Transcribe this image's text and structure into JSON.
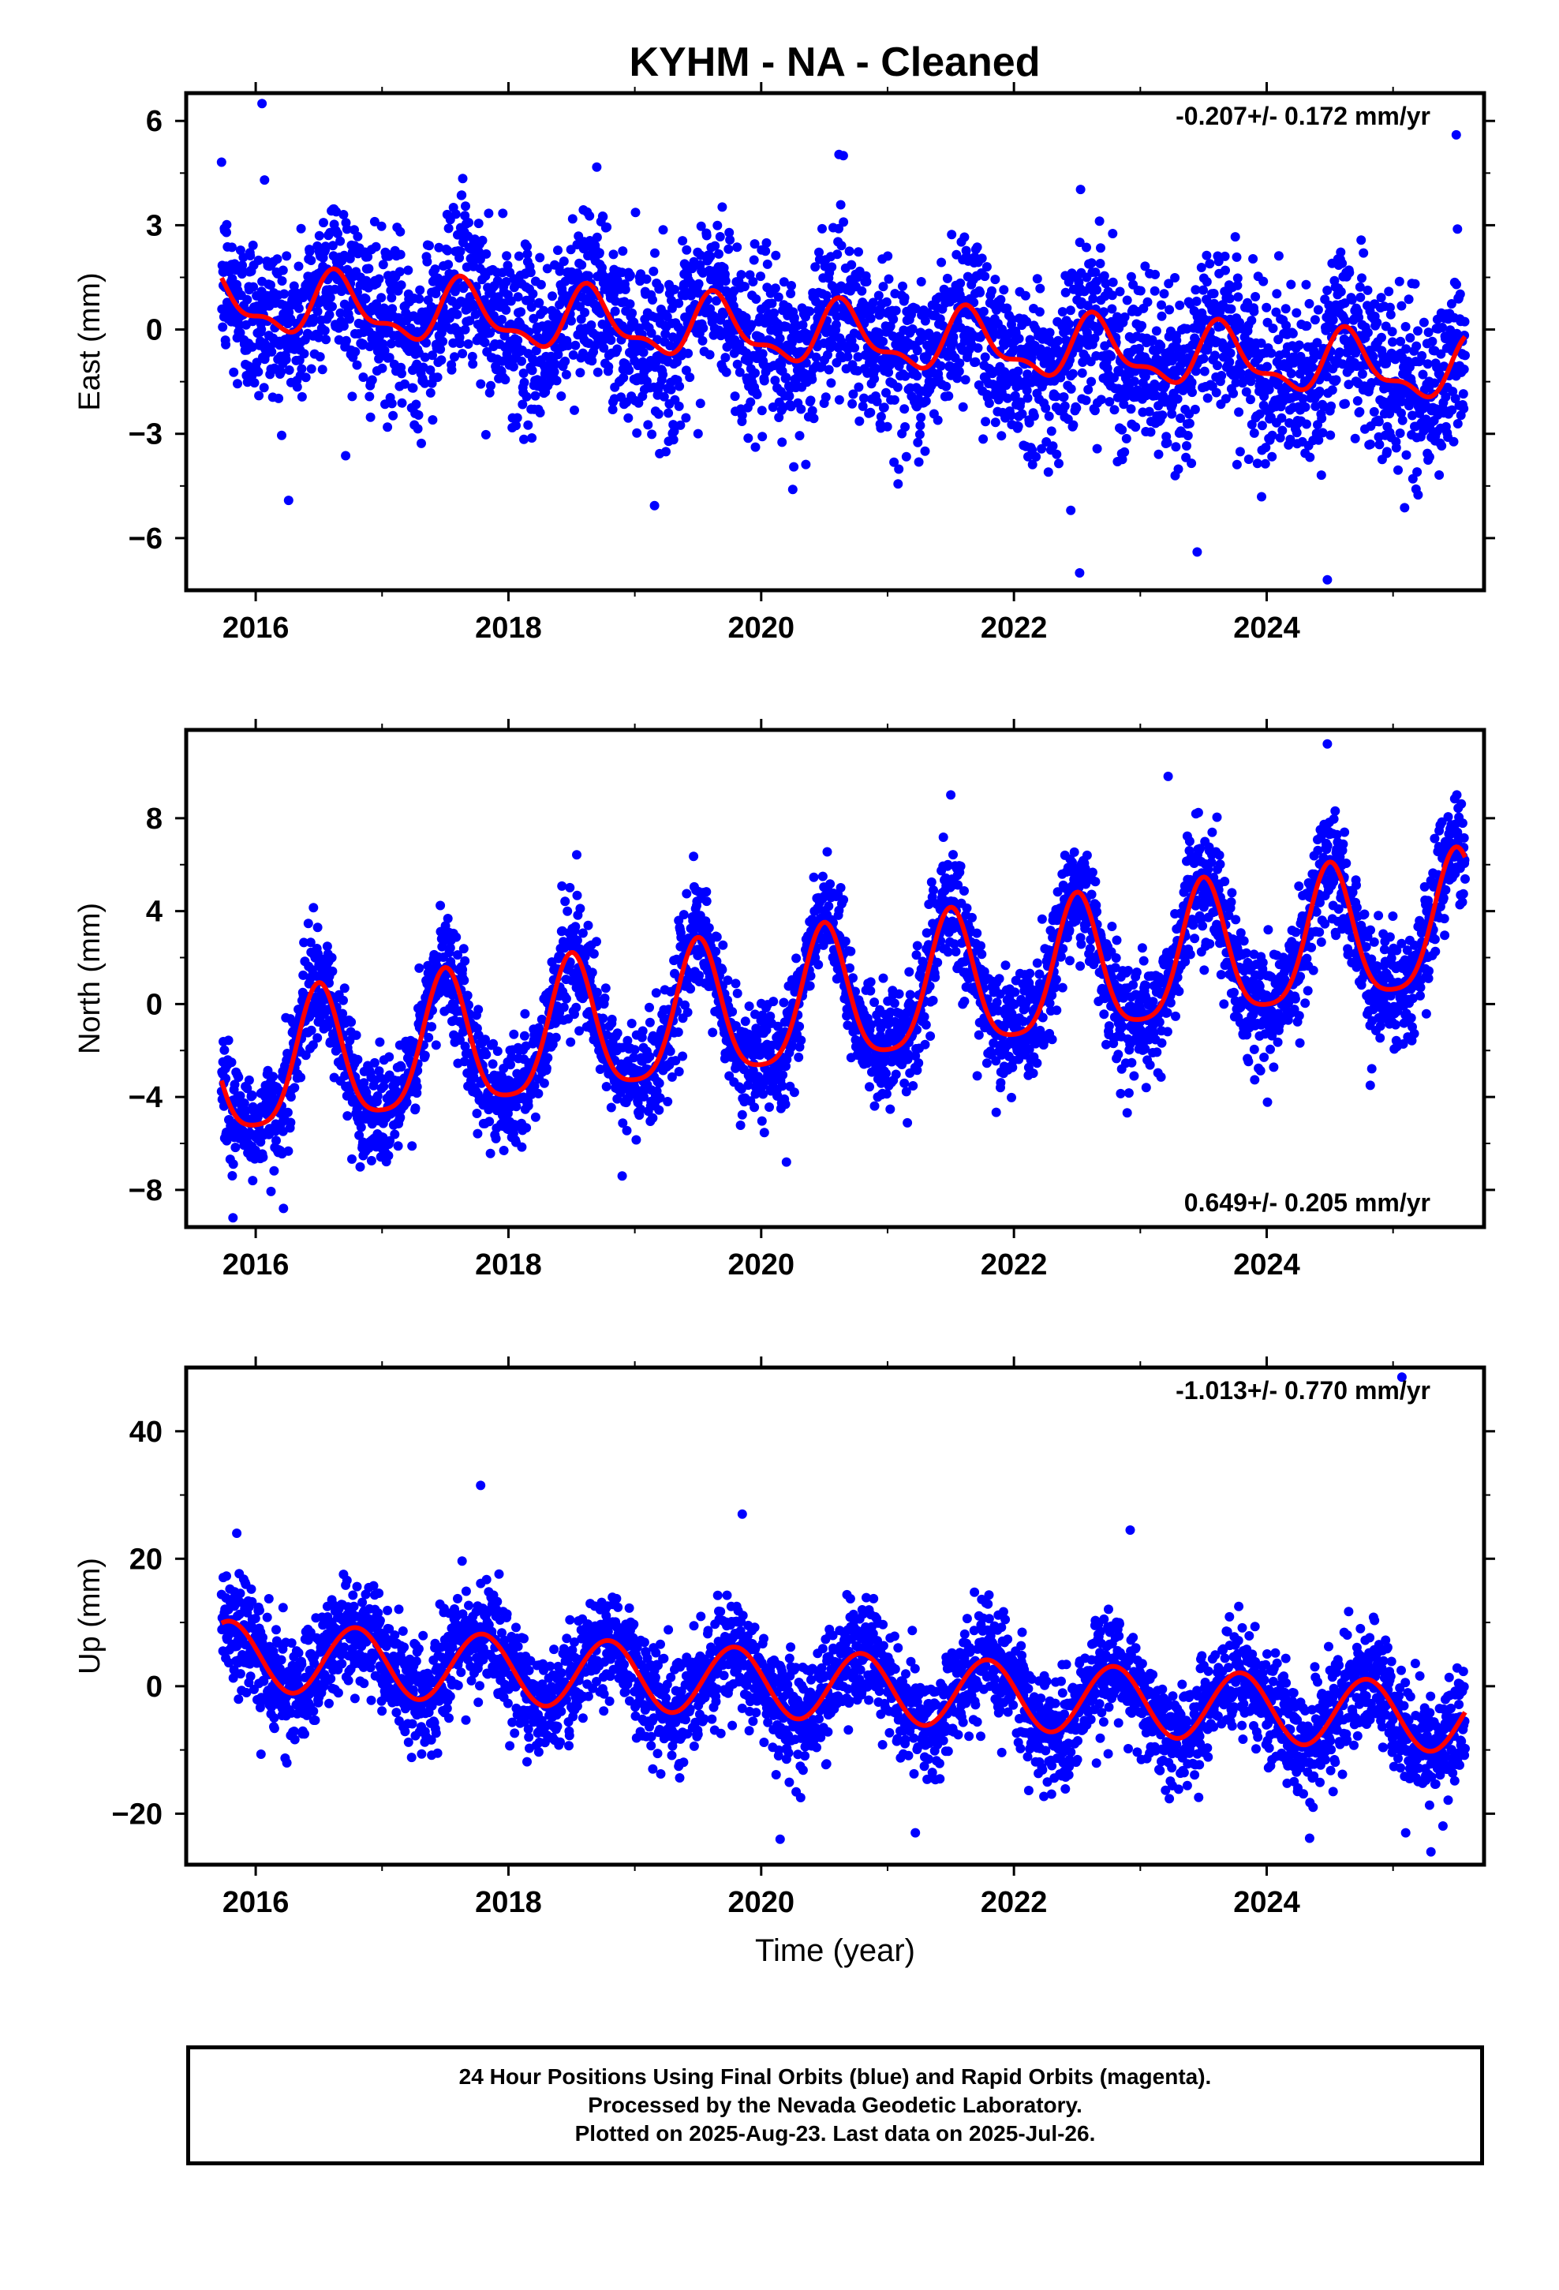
{
  "title": "KYHM  - NA - Cleaned",
  "colors": {
    "points": "#0000ff",
    "fit": "#ff0000",
    "frame": "#000000"
  },
  "chart_data": [
    {
      "type": "scatter",
      "component": "east",
      "ylabel": "East (mm)",
      "xlim": [
        2015.45,
        2025.72
      ],
      "ylim": [
        -7.5,
        6.8
      ],
      "yticks": [
        6,
        3,
        0,
        -3,
        -6
      ],
      "xticks": [
        2016,
        2018,
        2020,
        2022,
        2024
      ],
      "xlabel": "",
      "rate_text": "-0.207+/- 0.172 mm/yr",
      "rate_position": "top-right",
      "fit": {
        "rate": -0.207,
        "offset": 0.75,
        "ref": 2016.0,
        "annual_amp": 0.8,
        "annual_phase_peak": 0.65,
        "semiannual_amp": 0.35,
        "semiannual_phase_peak": 0.1
      },
      "scatter_sd": 1.2,
      "outliers": [
        [
          2016.05,
          6.5
        ],
        [
          2016.07,
          4.3
        ],
        [
          2020.65,
          5.0
        ],
        [
          2025.5,
          5.6
        ],
        [
          2022.52,
          -7.0
        ],
        [
          2024.48,
          -7.2
        ],
        [
          2023.45,
          -6.4
        ],
        [
          2022.45,
          -5.2
        ],
        [
          2020.25,
          -4.6
        ]
      ]
    },
    {
      "type": "scatter",
      "component": "north",
      "ylabel": "North (mm)",
      "xlim": [
        2015.45,
        2025.72
      ],
      "ylim": [
        -9.6,
        11.8
      ],
      "yticks": [
        8,
        4,
        0,
        -4,
        -8
      ],
      "xticks": [
        2016,
        2018,
        2020,
        2022,
        2024
      ],
      "xlabel": "",
      "rate_text": "0.649+/- 0.205 mm/yr",
      "rate_position": "bottom-right",
      "fit": {
        "rate": 0.649,
        "offset": -2.9,
        "ref": 2016.0,
        "annual_amp": 2.9,
        "annual_phase_peak": 0.5,
        "semiannual_amp": 0.6,
        "semiannual_phase_peak": 0.5
      },
      "scatter_sd": 1.2,
      "outliers": [
        [
          2024.48,
          11.2
        ],
        [
          2023.22,
          9.8
        ],
        [
          2021.5,
          9.0
        ],
        [
          2015.82,
          -9.2
        ],
        [
          2016.22,
          -8.8
        ],
        [
          2018.9,
          -7.4
        ],
        [
          2020.2,
          -6.8
        ],
        [
          2024.82,
          -3.5
        ]
      ]
    },
    {
      "type": "scatter",
      "component": "up",
      "ylabel": "Up (mm)",
      "xlim": [
        2015.45,
        2025.72
      ],
      "ylim": [
        -28,
        50
      ],
      "yticks": [
        40,
        20,
        0,
        -20
      ],
      "xticks": [
        2016,
        2018,
        2020,
        2022,
        2024
      ],
      "xlabel": "Time (year)",
      "rate_text": "-1.013+/- 0.770 mm/yr",
      "rate_position": "top-right",
      "fit": {
        "rate": -1.013,
        "offset": 4.6,
        "ref": 2016.0,
        "annual_amp": 5.4,
        "annual_phase_peak": 0.79,
        "semiannual_amp": 0.0,
        "semiannual_phase_peak": 0.0
      },
      "scatter_sd": 4.2,
      "outliers": [
        [
          2025.07,
          48.5
        ],
        [
          2017.78,
          31.5
        ],
        [
          2019.85,
          27.0
        ],
        [
          2022.92,
          24.5
        ],
        [
          2015.85,
          24.0
        ],
        [
          2020.15,
          -24.0
        ],
        [
          2025.3,
          -26.0
        ],
        [
          2021.22,
          -23.0
        ],
        [
          2025.1,
          -23.0
        ]
      ]
    }
  ],
  "footer": {
    "line1": "24 Hour Positions Using Final Orbits (blue) and Rapid Orbits (magenta).",
    "line2": "Processed by the Nevada Geodetic Laboratory.",
    "line3": "Plotted on 2025-Aug-23. Last data on 2025-Jul-26."
  }
}
